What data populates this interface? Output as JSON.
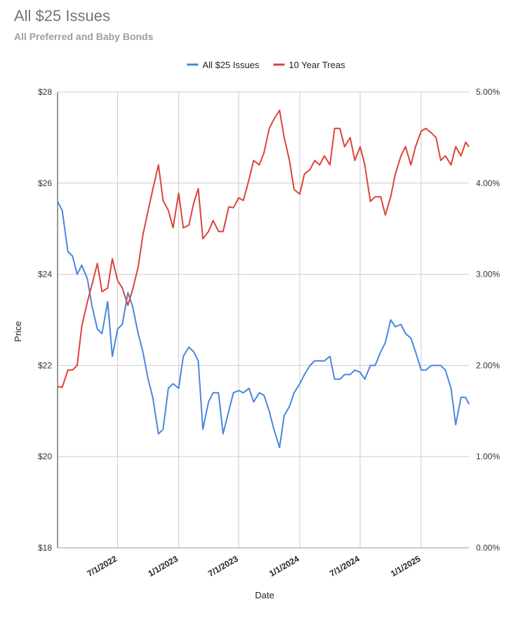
{
  "chart_data": {
    "type": "line",
    "title": "All $25 Issues",
    "subtitle": "All Preferred and Baby Bonds",
    "x_label": "Date",
    "y_label": "Price",
    "legend": "top",
    "grid": true,
    "x": [
      "1/1/2022",
      "1/15/2022",
      "2/1/2022",
      "2/15/2022",
      "3/1/2022",
      "3/15/2022",
      "4/1/2022",
      "4/15/2022",
      "5/1/2022",
      "5/15/2022",
      "6/1/2022",
      "6/15/2022",
      "7/1/2022",
      "7/15/2022",
      "8/1/2022",
      "8/15/2022",
      "9/1/2022",
      "9/15/2022",
      "10/1/2022",
      "10/15/2022",
      "11/1/2022",
      "11/15/2022",
      "12/1/2022",
      "12/15/2022",
      "1/1/2023",
      "1/15/2023",
      "2/1/2023",
      "2/15/2023",
      "3/1/2023",
      "3/15/2023",
      "4/1/2023",
      "4/15/2023",
      "5/1/2023",
      "5/15/2023",
      "6/1/2023",
      "6/15/2023",
      "7/1/2023",
      "7/15/2023",
      "8/1/2023",
      "8/15/2023",
      "9/1/2023",
      "9/15/2023",
      "10/1/2023",
      "10/15/2023",
      "11/1/2023",
      "11/15/2023",
      "12/1/2023",
      "12/15/2023",
      "1/1/2024",
      "1/15/2024",
      "2/1/2024",
      "2/15/2024",
      "3/1/2024",
      "3/15/2024",
      "4/1/2024",
      "4/15/2024",
      "5/1/2024",
      "5/15/2024",
      "6/1/2024",
      "6/15/2024",
      "7/1/2024",
      "7/15/2024",
      "8/1/2024",
      "8/15/2024",
      "9/1/2024",
      "9/15/2024",
      "10/1/2024",
      "10/15/2024",
      "11/1/2024",
      "11/15/2024",
      "12/1/2024",
      "12/15/2024",
      "1/1/2025",
      "1/15/2025",
      "2/1/2025",
      "2/15/2025",
      "3/1/2025",
      "3/15/2025",
      "4/1/2025",
      "4/15/2025",
      "5/1/2025",
      "5/15/2025",
      "5/25/2025"
    ],
    "series": [
      {
        "name": "All $25 Issues",
        "color": "#4a86e0",
        "values": [
          25.6,
          25.4,
          24.5,
          24.4,
          24.0,
          24.2,
          23.9,
          23.3,
          22.8,
          22.7,
          23.4,
          22.2,
          22.8,
          22.9,
          23.6,
          23.3,
          22.7,
          22.3,
          21.7,
          21.3,
          20.5,
          20.6,
          21.5,
          21.6,
          21.5,
          22.2,
          22.4,
          22.3,
          22.1,
          20.6,
          21.2,
          21.4,
          21.4,
          20.5,
          21.0,
          21.4,
          21.45,
          21.4,
          21.5,
          21.2,
          21.4,
          21.35,
          21.0,
          20.6,
          20.2,
          20.9,
          21.1,
          21.4,
          21.6,
          21.8,
          22.0,
          22.1,
          22.1,
          22.1,
          22.2,
          21.7,
          21.7,
          21.8,
          21.8,
          21.9,
          21.85,
          21.7,
          22.0,
          22.0,
          22.3,
          22.5,
          23.0,
          22.85,
          22.9,
          22.7,
          22.6,
          22.3,
          21.9,
          21.9,
          22.0,
          22.0,
          22.0,
          21.9,
          21.5,
          20.7,
          21.3,
          21.3,
          21.15
        ]
      },
      {
        "name": "10 Year Treas",
        "color": "#db4437",
        "axis": "y2",
        "values": [
          1.77,
          1.76,
          1.95,
          1.95,
          2.0,
          2.43,
          2.7,
          2.89,
          3.12,
          2.81,
          2.85,
          3.17,
          2.93,
          2.85,
          2.66,
          2.83,
          3.08,
          3.43,
          3.7,
          3.93,
          4.2,
          3.81,
          3.7,
          3.51,
          3.89,
          3.51,
          3.54,
          3.78,
          3.94,
          3.39,
          3.47,
          3.59,
          3.47,
          3.47,
          3.74,
          3.73,
          3.84,
          3.81,
          4.04,
          4.25,
          4.2,
          4.33,
          4.6,
          4.7,
          4.8,
          4.5,
          4.25,
          3.93,
          3.88,
          4.1,
          4.15,
          4.25,
          4.2,
          4.3,
          4.2,
          4.6,
          4.6,
          4.4,
          4.5,
          4.25,
          4.4,
          4.2,
          3.8,
          3.85,
          3.85,
          3.65,
          3.85,
          4.1,
          4.3,
          4.4,
          4.2,
          4.4,
          4.57,
          4.6,
          4.55,
          4.5,
          4.25,
          4.3,
          4.2,
          4.4,
          4.3,
          4.45,
          4.4
        ]
      }
    ],
    "xlim": [
      "1/1/2022",
      "5/25/2025"
    ],
    "xticks": [
      "7/1/2022",
      "1/1/2023",
      "7/1/2023",
      "1/1/2024",
      "7/1/2024",
      "1/1/2025"
    ],
    "ylim": [
      18,
      28
    ],
    "yticks": [
      {
        "value": 18,
        "label": "$18"
      },
      {
        "value": 20,
        "label": "$20"
      },
      {
        "value": 22,
        "label": "$22"
      },
      {
        "value": 24,
        "label": "$24"
      },
      {
        "value": 26,
        "label": "$26"
      },
      {
        "value": 28,
        "label": "$28"
      }
    ],
    "y2lim": [
      0,
      5
    ],
    "y2ticks": [
      {
        "value": 0,
        "label": "0.00%"
      },
      {
        "value": 1,
        "label": "1.00%"
      },
      {
        "value": 2,
        "label": "2.00%"
      },
      {
        "value": 3,
        "label": "3.00%"
      },
      {
        "value": 4,
        "label": "4.00%"
      },
      {
        "value": 5,
        "label": "5.00%"
      }
    ]
  }
}
